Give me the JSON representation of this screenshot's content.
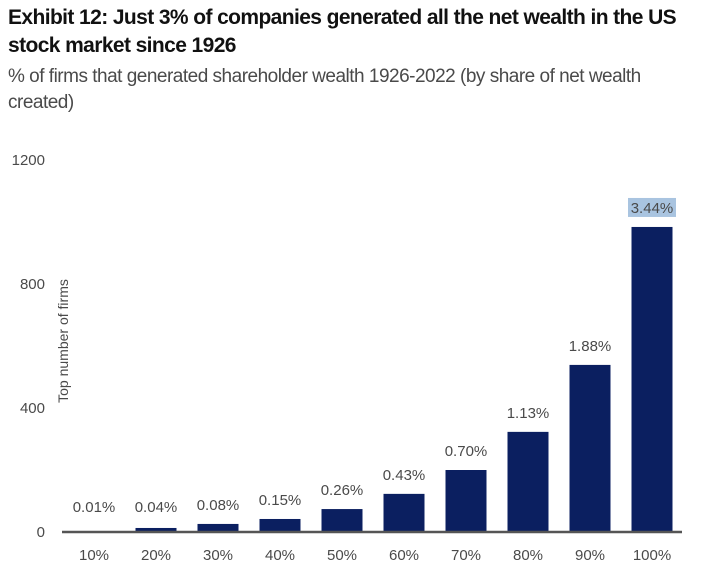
{
  "chart_data": {
    "type": "bar",
    "title": "Exhibit 12: Just 3% of companies generated all the net wealth in the US stock market since 1926",
    "subtitle": "% of firms that generated shareholder wealth 1926-2022 (by share of net wealth created)",
    "xlabel": "",
    "ylabel": "Top number of firms",
    "categories": [
      "10%",
      "20%",
      "30%",
      "40%",
      "50%",
      "60%",
      "70%",
      "80%",
      "90%",
      "100%"
    ],
    "values": [
      3,
      13,
      26,
      42,
      74,
      123,
      200,
      323,
      539,
      984
    ],
    "data_labels": [
      "0.01%",
      "0.04%",
      "0.08%",
      "0.15%",
      "0.26%",
      "0.43%",
      "0.70%",
      "1.13%",
      "1.88%",
      "3.44%"
    ],
    "highlighted_label_index": 9,
    "ylim": [
      0,
      1200
    ],
    "yticks": [
      0,
      400,
      800,
      1200
    ],
    "grid": false,
    "colors": {
      "bar": "#0b1f60",
      "highlight": "#a9c4e0",
      "axis": "#555555"
    }
  }
}
